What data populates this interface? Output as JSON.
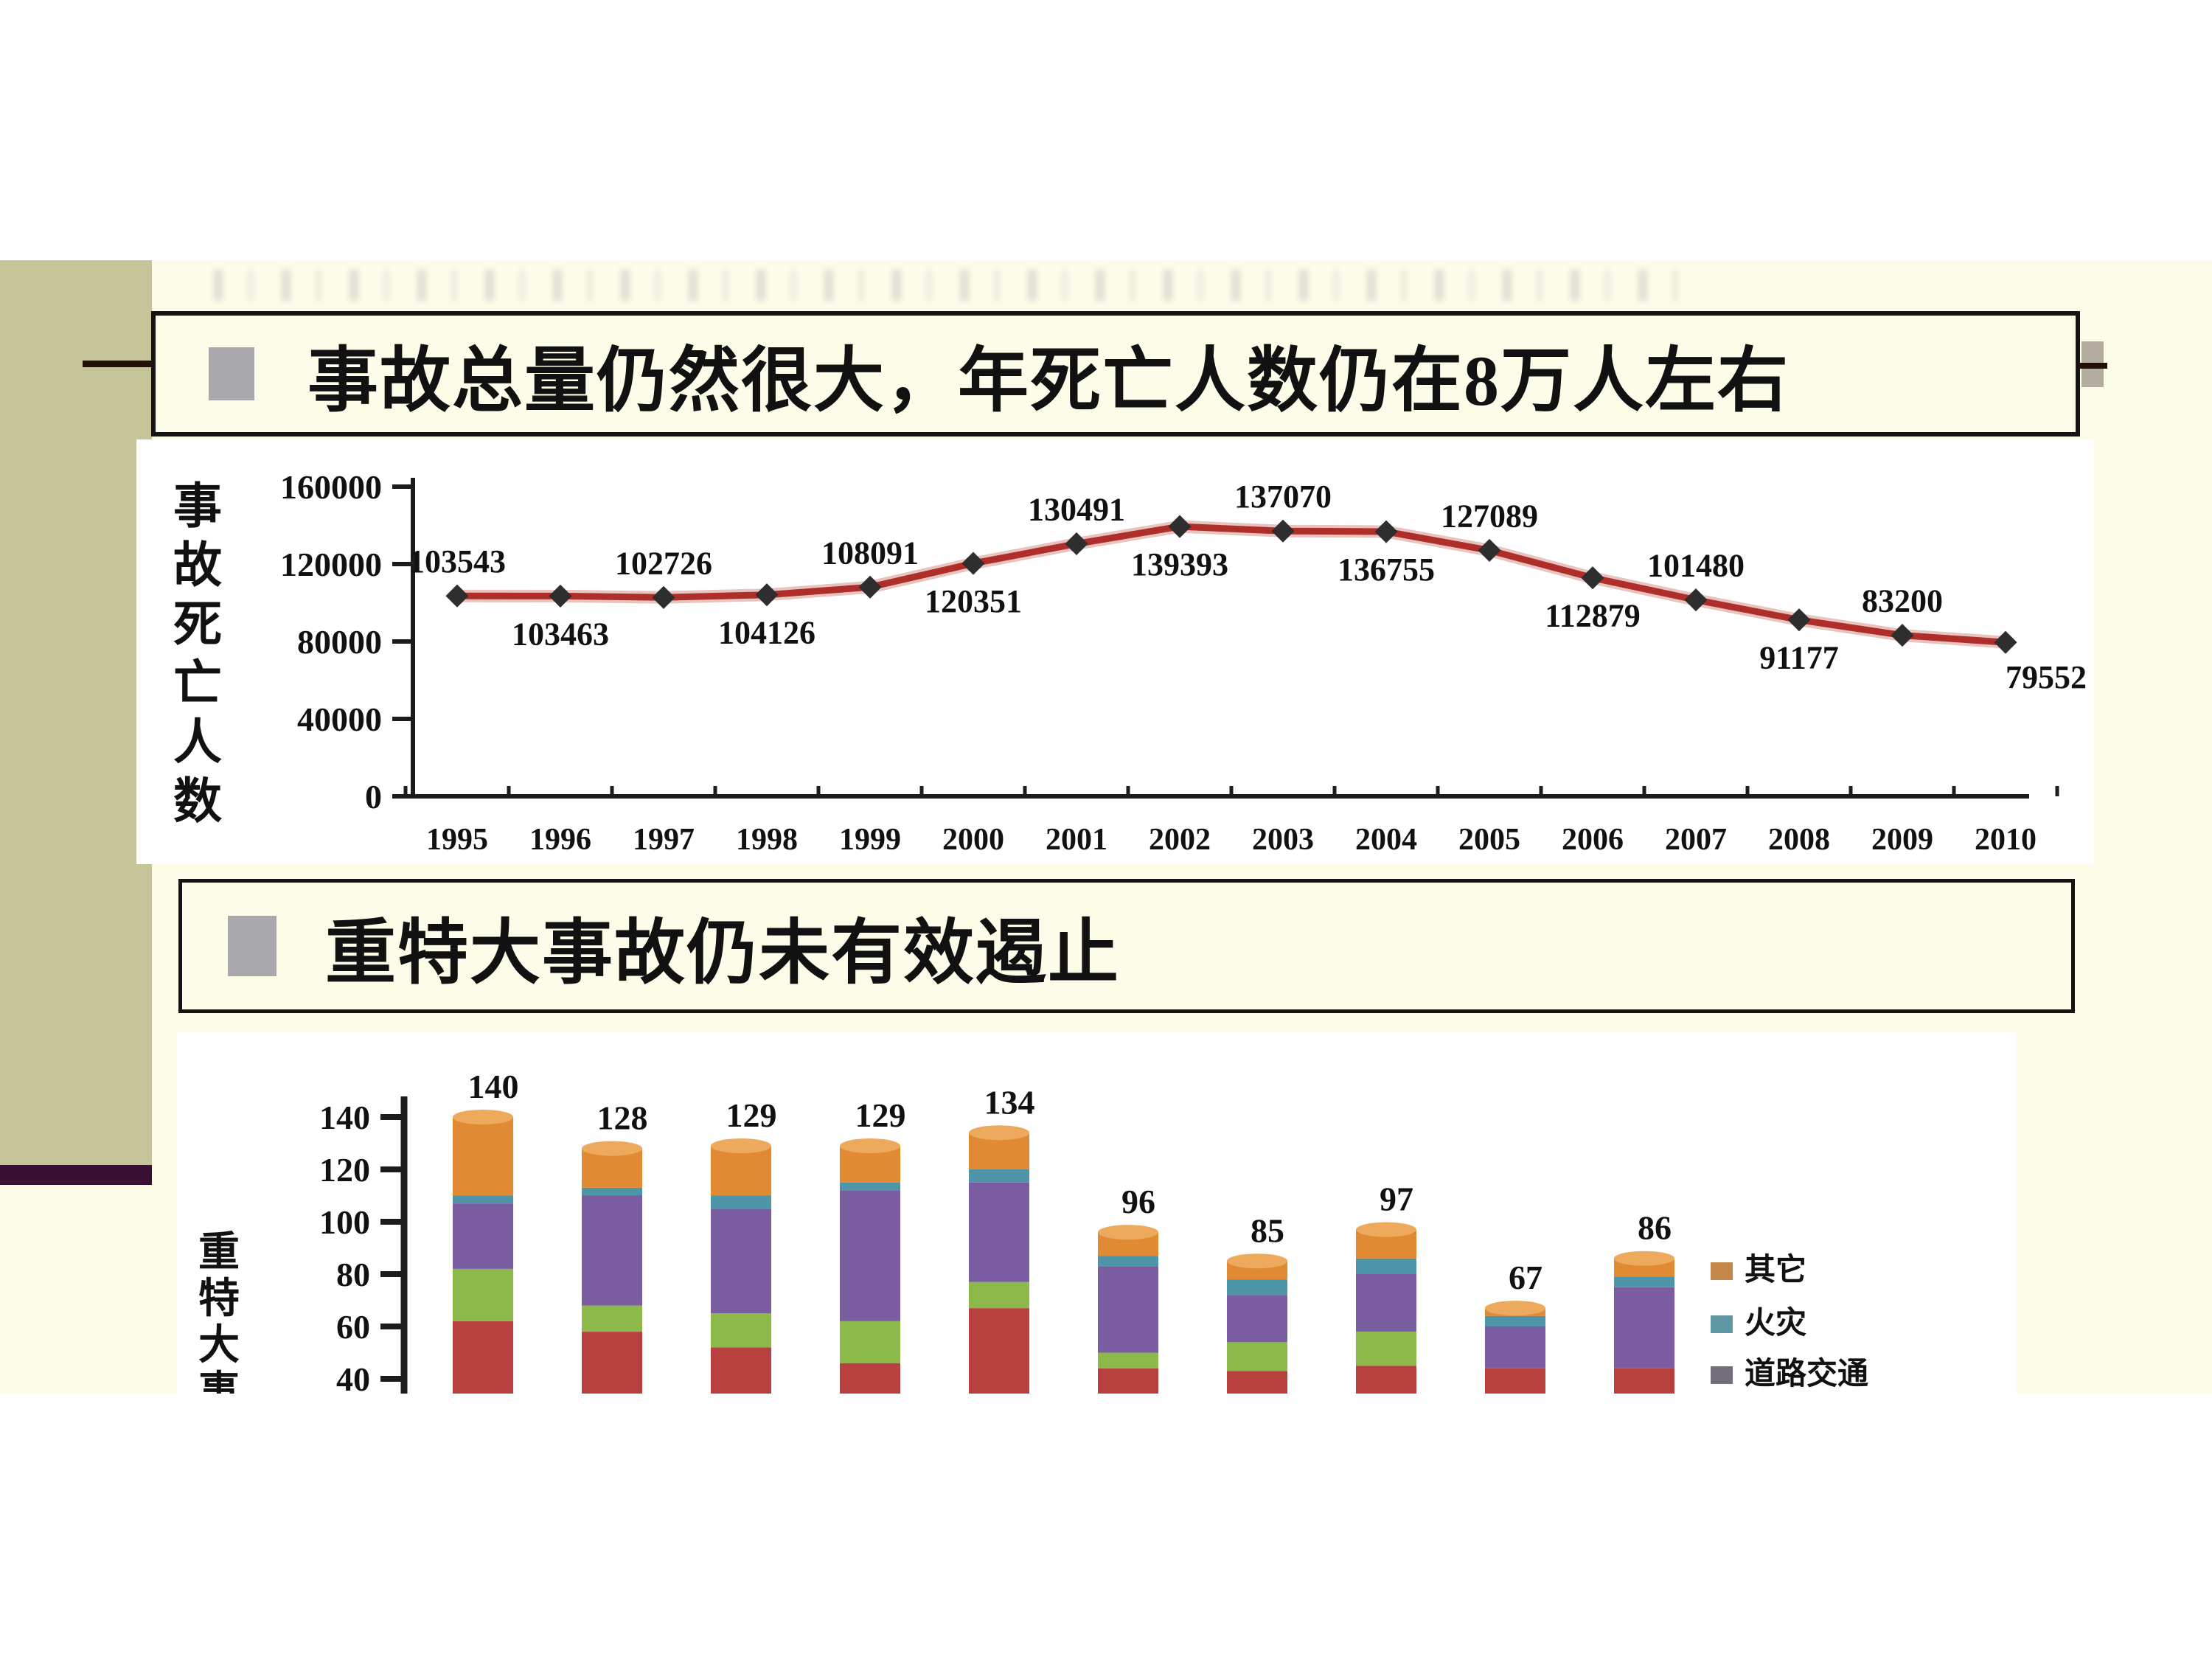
{
  "slide": {
    "heading1": {
      "text": "事故总量仍然很大，年死亡人数仍在8万人左右"
    },
    "heading2": {
      "text": "重特大事故仍未有效遏止"
    }
  },
  "chart_data": [
    {
      "type": "line",
      "ylabel": "事故死亡人数",
      "y_ticks": [
        160000,
        120000,
        80000,
        40000,
        0
      ],
      "ylim": [
        0,
        160000
      ],
      "years": [
        "1995",
        "1996",
        "1997",
        "1998",
        "1999",
        "2000",
        "2001",
        "2002",
        "2003",
        "2004",
        "2005",
        "2006",
        "2007",
        "2008",
        "2009",
        "2010"
      ],
      "values": [
        103543,
        103463,
        102726,
        104126,
        108091,
        120351,
        130491,
        139393,
        137070,
        136755,
        127089,
        112879,
        101480,
        91177,
        83200,
        79552
      ],
      "line_color": "#ae2f2a",
      "line_halo_color": "#d99b94",
      "marker": "diamond",
      "marker_color": "#2e2e2e",
      "label_layout": "alternating above/below",
      "grid": false
    },
    {
      "type": "bar",
      "stacked": true,
      "ylabel": "重特大事故",
      "y_ticks": [
        140,
        120,
        100,
        80,
        60,
        40
      ],
      "totals": [
        140,
        128,
        129,
        129,
        134,
        96,
        85,
        97,
        67,
        86
      ],
      "segments_bottom_to_top": [
        [
          62,
          20,
          25,
          3,
          30
        ],
        [
          58,
          10,
          42,
          3,
          15
        ],
        [
          52,
          13,
          40,
          5,
          19
        ],
        [
          46,
          16,
          50,
          3,
          14
        ],
        [
          67,
          10,
          38,
          5,
          14
        ],
        [
          44,
          6,
          33,
          4,
          9
        ],
        [
          43,
          11,
          18,
          6,
          7
        ],
        [
          45,
          13,
          22,
          6,
          11
        ],
        [
          44,
          0,
          16,
          4,
          3
        ],
        [
          44,
          0,
          31,
          4,
          7
        ]
      ],
      "segment_colors": [
        "#b8413f",
        "#8db84a",
        "#7a5ca1",
        "#4e95a8",
        "#e08a33"
      ],
      "bar_cap_color": "#eda95c",
      "legend_position": "right",
      "legend": [
        {
          "label": "其它",
          "color": "#c3874a"
        },
        {
          "label": "火灾",
          "color": "#5f98a4"
        },
        {
          "label": "道路交通",
          "color": "#746d7c"
        }
      ],
      "grid": false
    }
  ],
  "colors": {
    "slide_bg": "#fcfce8",
    "panel_bg": "#ffffff",
    "olive_column": "#c5c498",
    "maroon_bar": "#3a1133",
    "box_border": "#141414",
    "bullet_gray": "#a9a9ad",
    "tab_gray": "#b3ac9f",
    "decor_line": "#241006",
    "text": "#111111"
  }
}
